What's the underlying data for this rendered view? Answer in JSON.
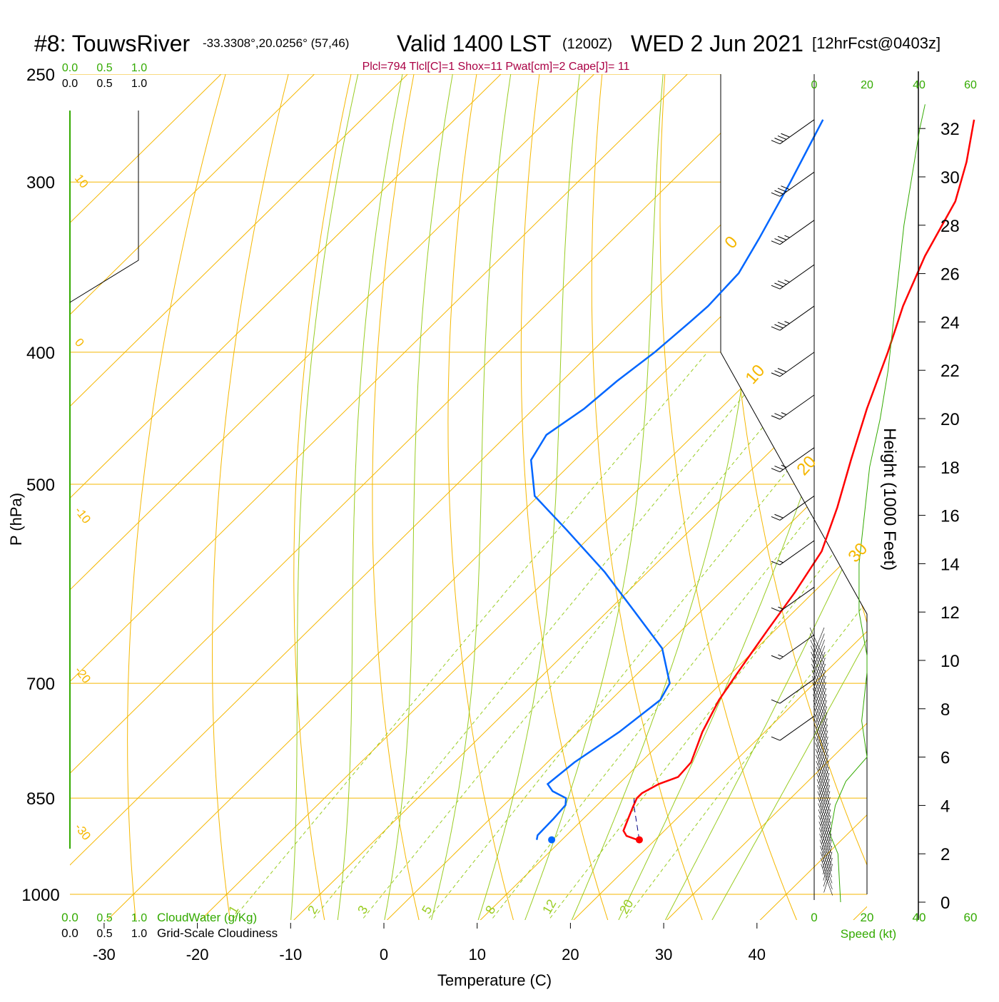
{
  "header": {
    "station": "#8: TouwsRiver",
    "coords": "-33.3308°,20.0256° (57,46)",
    "valid": "Valid 1400 LST",
    "utc": "(1200Z)",
    "date": "WED 2 Jun 2021",
    "forecast": "[12hrFcst@0403z]",
    "indices": "Plcl=794 Tlcl[C]=1 Shox=11 Pwat[cm]=2 Cape[J]= 11"
  },
  "colors": {
    "temperature": "#ff0000",
    "dewpoint": "#0066ff",
    "isotherm": "#f5b700",
    "dry_adiabat": "#f5b700",
    "moist_adiabat": "#99cc22",
    "mixing_ratio": "#99cc22",
    "green_text": "#33aa00",
    "indices_text": "#aa0044"
  },
  "chart_data": {
    "type": "skew-t",
    "xlabel": "Temperature (C)",
    "ylabel": "P (hPa)",
    "right_axis_label": "Height (1000 Feet)",
    "x_ticks": [
      -30,
      -20,
      -10,
      0,
      10,
      20,
      30,
      40
    ],
    "pressure_ticks": [
      250,
      300,
      400,
      500,
      700,
      850,
      1000
    ],
    "height_ticks": [
      0,
      2,
      4,
      6,
      8,
      10,
      12,
      14,
      16,
      18,
      20,
      22,
      24,
      26,
      28,
      30,
      32
    ],
    "isotherm_labels": [
      "10",
      "0",
      "-10",
      "-20",
      "-30"
    ],
    "upper_labels": [
      "0",
      "10",
      "20",
      "30"
    ],
    "mixing_ratio_labels": [
      "1",
      "2",
      "3",
      "5",
      "8",
      "12",
      "20"
    ],
    "cloud_scales": {
      "cloud_water_label": "CloudWater (g/Kg)",
      "cloudiness_label": "Grid-Scale Cloudiness",
      "ticks": [
        "0.0",
        "0.5",
        "1.0"
      ]
    },
    "wind_speed_axis": {
      "label": "Speed (kt)",
      "ticks": [
        "0",
        "20",
        "40",
        "60"
      ]
    },
    "temperature_profile": [
      {
        "p": 912,
        "t": 18.1
      },
      {
        "p": 906,
        "t": 16.5
      },
      {
        "p": 898,
        "t": 15.6
      },
      {
        "p": 880,
        "t": 14.8
      },
      {
        "p": 862,
        "t": 14.0
      },
      {
        "p": 850,
        "t": 13.5
      },
      {
        "p": 843,
        "t": 13.5
      },
      {
        "p": 830,
        "t": 14.3
      },
      {
        "p": 820,
        "t": 15.6
      },
      {
        "p": 800,
        "t": 15.4
      },
      {
        "p": 760,
        "t": 13.3
      },
      {
        "p": 720,
        "t": 11.6
      },
      {
        "p": 680,
        "t": 10.4
      },
      {
        "p": 640,
        "t": 9.2
      },
      {
        "p": 600,
        "t": 8.0
      },
      {
        "p": 560,
        "t": 6.4
      },
      {
        "p": 520,
        "t": 3.3
      },
      {
        "p": 480,
        "t": -0.4
      },
      {
        "p": 440,
        "t": -4.3
      },
      {
        "p": 400,
        "t": -8.2
      },
      {
        "p": 370,
        "t": -11.6
      },
      {
        "p": 340,
        "t": -14.7
      },
      {
        "p": 310,
        "t": -17.4
      },
      {
        "p": 290,
        "t": -20.5
      },
      {
        "p": 270,
        "t": -24.3
      }
    ],
    "dewpoint_profile": [
      {
        "p": 912,
        "t": 7.3
      },
      {
        "p": 905,
        "t": 6.9
      },
      {
        "p": 880,
        "t": 6.8
      },
      {
        "p": 860,
        "t": 6.6
      },
      {
        "p": 850,
        "t": 5.9
      },
      {
        "p": 840,
        "t": 3.7
      },
      {
        "p": 830,
        "t": 2.4
      },
      {
        "p": 800,
        "t": 2.9
      },
      {
        "p": 760,
        "t": 4.4
      },
      {
        "p": 720,
        "t": 5.3
      },
      {
        "p": 700,
        "t": 4.5
      },
      {
        "p": 660,
        "t": -0.1
      },
      {
        "p": 620,
        "t": -7.1
      },
      {
        "p": 580,
        "t": -14.6
      },
      {
        "p": 540,
        "t": -23.3
      },
      {
        "p": 510,
        "t": -30.4
      },
      {
        "p": 480,
        "t": -34.7
      },
      {
        "p": 460,
        "t": -35.8
      },
      {
        "p": 440,
        "t": -34.6
      },
      {
        "p": 420,
        "t": -34.1
      },
      {
        "p": 400,
        "t": -33.2
      },
      {
        "p": 380,
        "t": -32.7
      },
      {
        "p": 370,
        "t": -32.5
      },
      {
        "p": 350,
        "t": -32.8
      },
      {
        "p": 330,
        "t": -34.4
      },
      {
        "p": 300,
        "t": -37.2
      },
      {
        "p": 270,
        "t": -40.5
      }
    ],
    "surface_temperature": 18.3,
    "surface_dewpoint": 8.9,
    "surface_pressure": 912,
    "wind_barbs": [
      {
        "p": 270,
        "speed_kt": 40
      },
      {
        "p": 295,
        "speed_kt": 40
      },
      {
        "p": 320,
        "speed_kt": 35
      },
      {
        "p": 345,
        "speed_kt": 35
      },
      {
        "p": 370,
        "speed_kt": 35
      },
      {
        "p": 400,
        "speed_kt": 30
      },
      {
        "p": 430,
        "speed_kt": 25
      },
      {
        "p": 470,
        "speed_kt": 25
      },
      {
        "p": 510,
        "speed_kt": 20
      },
      {
        "p": 550,
        "speed_kt": 15
      },
      {
        "p": 595,
        "speed_kt": 15
      },
      {
        "p": 645,
        "speed_kt": 15
      },
      {
        "p": 695,
        "speed_kt": 10
      },
      {
        "p": 740,
        "speed_kt": 10
      }
    ],
    "wind_speed_profile": [
      {
        "kft": 0.0,
        "kt": 10
      },
      {
        "kft": 2.0,
        "kt": 9
      },
      {
        "kft": 2.8,
        "kt": 6
      },
      {
        "kft": 4.0,
        "kt": 8
      },
      {
        "kft": 5.0,
        "kt": 12
      },
      {
        "kft": 6.0,
        "kt": 20
      },
      {
        "kft": 7.5,
        "kt": 18
      },
      {
        "kft": 9.5,
        "kt": 20
      },
      {
        "kft": 10.2,
        "kt": 20
      },
      {
        "kft": 12.0,
        "kt": 17
      },
      {
        "kft": 14.0,
        "kt": 17
      },
      {
        "kft": 16.0,
        "kt": 19
      },
      {
        "kft": 18.0,
        "kt": 21
      },
      {
        "kft": 20.0,
        "kt": 25
      },
      {
        "kft": 22.0,
        "kt": 28
      },
      {
        "kft": 24.0,
        "kt": 30
      },
      {
        "kft": 26.0,
        "kt": 32
      },
      {
        "kft": 28.0,
        "kt": 34
      },
      {
        "kft": 30.0,
        "kt": 37
      },
      {
        "kft": 32.0,
        "kt": 40
      },
      {
        "kft": 33.0,
        "kt": 42
      }
    ]
  }
}
